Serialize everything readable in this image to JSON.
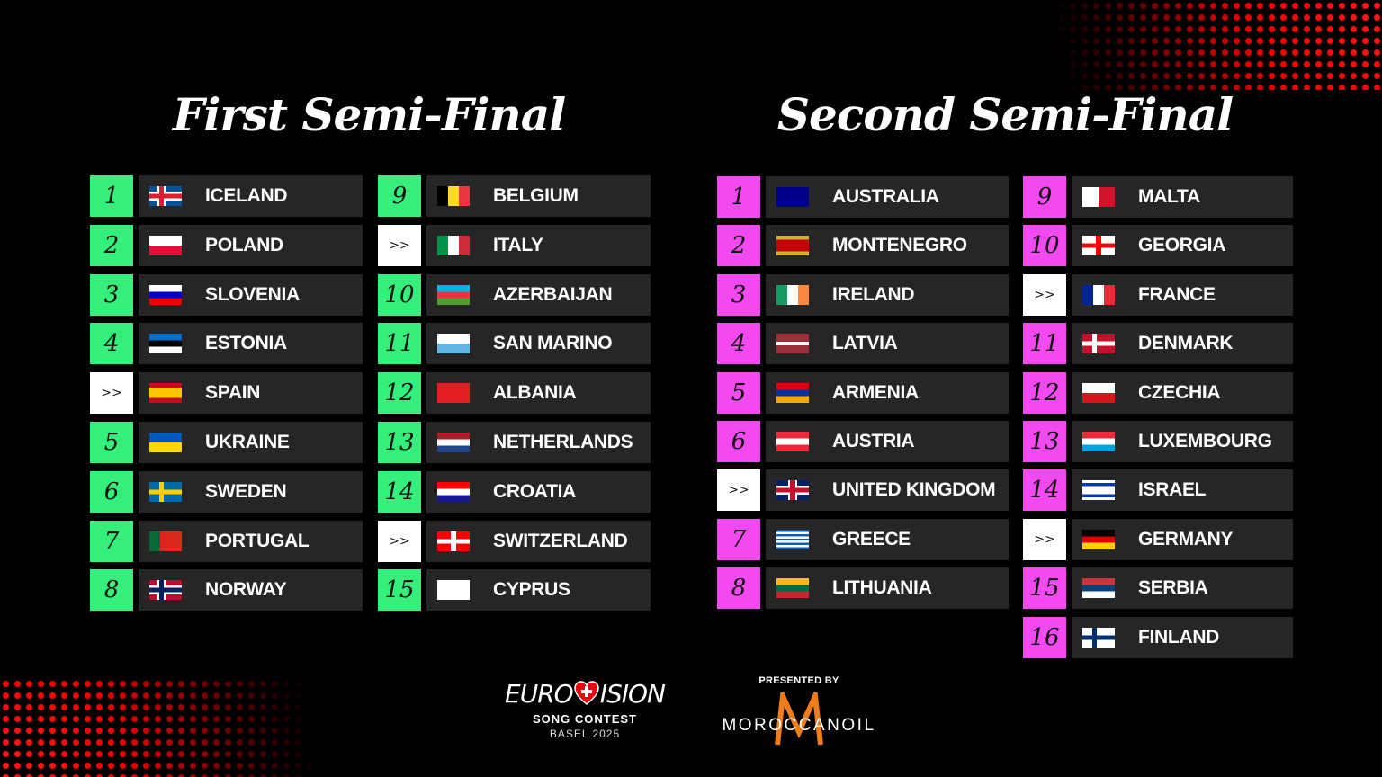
{
  "colors": {
    "qualifier_first": "#35ef7c",
    "qualifier_second": "#f24af0",
    "auto": "#ffffff",
    "row_bg": "#262626",
    "accent_red": "#ff1a1a"
  },
  "first": {
    "title": "First Semi-Final",
    "columns": [
      [
        {
          "n": "1",
          "c": "ICELAND",
          "f": {
            "t": "nordic",
            "bg": "#02529c",
            "x": "#dc1e35",
            "b": "#fff"
          }
        },
        {
          "n": "2",
          "c": "POLAND",
          "f": {
            "t": "h",
            "s": [
              "#fff",
              "#dc143c"
            ]
          }
        },
        {
          "n": "3",
          "c": "SLOVENIA",
          "f": {
            "t": "h",
            "s": [
              "#fff",
              "#0000d0",
              "#e00"
            ]
          }
        },
        {
          "n": "4",
          "c": "ESTONIA",
          "f": {
            "t": "h",
            "s": [
              "#0072ce",
              "#000",
              "#fff"
            ]
          }
        },
        {
          "n": ">>",
          "c": "SPAIN",
          "f": {
            "t": "h",
            "s": [
              "#c60b1e",
              "#ffc400",
              "#ffc400",
              "#c60b1e"
            ]
          }
        },
        {
          "n": "5",
          "c": "UKRAINE",
          "f": {
            "t": "h",
            "s": [
              "#0057b7",
              "#ffd700"
            ]
          }
        },
        {
          "n": "6",
          "c": "SWEDEN",
          "f": {
            "t": "nordic",
            "bg": "#006aa7",
            "x": "#fecc00"
          }
        },
        {
          "n": "7",
          "c": "PORTUGAL",
          "f": {
            "t": "v",
            "s": [
              "#046a38",
              "#da291c",
              "#da291c"
            ]
          }
        },
        {
          "n": "8",
          "c": "NORWAY",
          "f": {
            "t": "nordic",
            "bg": "#ba0c2f",
            "x": "#00205b",
            "b": "#fff"
          }
        }
      ],
      [
        {
          "n": "9",
          "c": "BELGIUM",
          "f": {
            "t": "v",
            "s": [
              "#000",
              "#fdda24",
              "#ef3340"
            ]
          }
        },
        {
          "n": ">>",
          "c": "ITALY",
          "f": {
            "t": "v",
            "s": [
              "#009246",
              "#fff",
              "#ce2b37"
            ]
          }
        },
        {
          "n": "10",
          "c": "AZERBAIJAN",
          "f": {
            "t": "h",
            "s": [
              "#00b5e2",
              "#ef3340",
              "#509e2f"
            ]
          }
        },
        {
          "n": "11",
          "c": "SAN MARINO",
          "f": {
            "t": "h",
            "s": [
              "#fff",
              "#5eb6e4"
            ]
          }
        },
        {
          "n": "12",
          "c": "ALBANIA",
          "f": {
            "t": "h",
            "s": [
              "#e41e20"
            ]
          }
        },
        {
          "n": "13",
          "c": "NETHERLANDS",
          "f": {
            "t": "h",
            "s": [
              "#ae1c28",
              "#fff",
              "#21468b"
            ]
          }
        },
        {
          "n": "14",
          "c": "CROATIA",
          "f": {
            "t": "h",
            "s": [
              "#ff0000",
              "#fff",
              "#171796"
            ]
          }
        },
        {
          "n": ">>",
          "c": "SWITZERLAND",
          "f": {
            "t": "cross",
            "bg": "#ff0000",
            "x": "#fff"
          }
        },
        {
          "n": "15",
          "c": "CYPRUS",
          "f": {
            "t": "h",
            "s": [
              "#fff"
            ]
          }
        }
      ]
    ]
  },
  "second": {
    "title": "Second Semi-Final",
    "columns": [
      [
        {
          "n": "1",
          "c": "AUSTRALIA",
          "f": {
            "t": "h",
            "s": [
              "#00008b"
            ]
          }
        },
        {
          "n": "2",
          "c": "MONTENEGRO",
          "f": {
            "t": "h",
            "s": [
              "#d4af37",
              "#c40308",
              "#c40308",
              "#c40308",
              "#d4af37"
            ]
          }
        },
        {
          "n": "3",
          "c": "IRELAND",
          "f": {
            "t": "v",
            "s": [
              "#169b62",
              "#fff",
              "#ff883e"
            ]
          }
        },
        {
          "n": "4",
          "c": "LATVIA",
          "f": {
            "t": "h",
            "s": [
              "#9e3039",
              "#9e3039",
              "#fff",
              "#9e3039",
              "#9e3039"
            ]
          }
        },
        {
          "n": "5",
          "c": "ARMENIA",
          "f": {
            "t": "h",
            "s": [
              "#d90012",
              "#0033a0",
              "#f2a800"
            ]
          }
        },
        {
          "n": "6",
          "c": "AUSTRIA",
          "f": {
            "t": "h",
            "s": [
              "#ed2939",
              "#fff",
              "#ed2939"
            ]
          }
        },
        {
          "n": ">>",
          "c": "UNITED KINGDOM",
          "f": {
            "t": "cross",
            "bg": "#012169",
            "x": "#c8102e",
            "b": "#fff"
          }
        },
        {
          "n": "7",
          "c": "GREECE",
          "f": {
            "t": "h",
            "s": [
              "#0d5eaf",
              "#fff",
              "#0d5eaf",
              "#fff",
              "#0d5eaf",
              "#fff",
              "#0d5eaf",
              "#fff",
              "#0d5eaf"
            ]
          }
        },
        {
          "n": "8",
          "c": "LITHUANIA",
          "f": {
            "t": "h",
            "s": [
              "#fdb913",
              "#006a44",
              "#c1272d"
            ]
          }
        }
      ],
      [
        {
          "n": "9",
          "c": "MALTA",
          "f": {
            "t": "v",
            "s": [
              "#fff",
              "#cf142b"
            ]
          }
        },
        {
          "n": "10",
          "c": "GEORGIA",
          "f": {
            "t": "cross",
            "bg": "#fff",
            "x": "#ff0000"
          }
        },
        {
          "n": ">>",
          "c": "FRANCE",
          "f": {
            "t": "v",
            "s": [
              "#002395",
              "#fff",
              "#ed2939"
            ]
          }
        },
        {
          "n": "11",
          "c": "DENMARK",
          "f": {
            "t": "nordic",
            "bg": "#c8102e",
            "x": "#fff"
          }
        },
        {
          "n": "12",
          "c": "CZECHIA",
          "f": {
            "t": "h",
            "s": [
              "#fff",
              "#d7141a"
            ]
          }
        },
        {
          "n": "13",
          "c": "LUXEMBOURG",
          "f": {
            "t": "h",
            "s": [
              "#ed2939",
              "#fff",
              "#00a1de"
            ]
          }
        },
        {
          "n": "14",
          "c": "ISRAEL",
          "f": {
            "t": "h",
            "s": [
              "#fff",
              "#0038b8",
              "#fff",
              "#fff",
              "#fff",
              "#0038b8",
              "#fff"
            ]
          }
        },
        {
          "n": ">>",
          "c": "GERMANY",
          "f": {
            "t": "h",
            "s": [
              "#000",
              "#dd0000",
              "#ffce00"
            ]
          }
        },
        {
          "n": "15",
          "c": "SERBIA",
          "f": {
            "t": "h",
            "s": [
              "#c6363c",
              "#0c4076",
              "#fff"
            ]
          }
        },
        {
          "n": "16",
          "c": "FINLAND",
          "f": {
            "t": "nordic",
            "bg": "#fff",
            "x": "#002f6c"
          }
        }
      ]
    ]
  },
  "footer": {
    "logo_text": "Eurovision",
    "logo_sub": "SONG CONTEST",
    "logo_year": "BASEL 2025",
    "presented_by": "PRESENTED BY",
    "sponsor": "MOROCCANOIL",
    "sponsor_mark": "M"
  }
}
